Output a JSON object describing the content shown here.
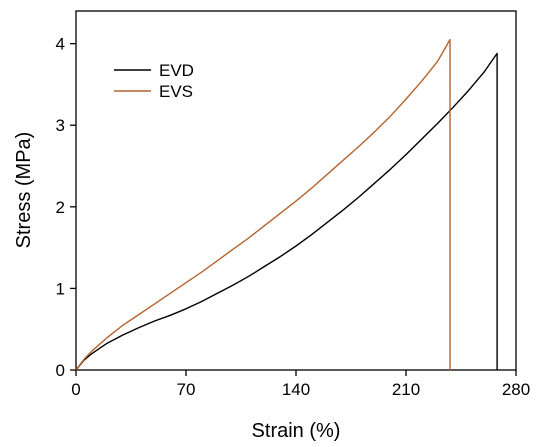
{
  "chart_data": {
    "type": "line",
    "title": "",
    "xlabel": "Strain (%)",
    "ylabel": "Stress (MPa)",
    "xlim": [
      0,
      280
    ],
    "ylim": [
      0,
      4.4
    ],
    "xticks": [
      0,
      70,
      140,
      210,
      280
    ],
    "yticks": [
      0,
      1,
      2,
      3,
      4
    ],
    "grid": false,
    "legend": "top-left",
    "series": [
      {
        "name": "EVD",
        "color": "#000000",
        "x": [
          0,
          5,
          10,
          20,
          30,
          40,
          50,
          60,
          70,
          80,
          90,
          100,
          110,
          120,
          130,
          140,
          150,
          160,
          170,
          180,
          190,
          200,
          210,
          220,
          230,
          240,
          250,
          260,
          268,
          268
        ],
        "y": [
          0,
          0.12,
          0.2,
          0.33,
          0.43,
          0.52,
          0.6,
          0.67,
          0.75,
          0.84,
          0.94,
          1.04,
          1.15,
          1.27,
          1.39,
          1.52,
          1.66,
          1.81,
          1.96,
          2.12,
          2.29,
          2.46,
          2.64,
          2.83,
          3.02,
          3.22,
          3.43,
          3.66,
          3.88,
          0
        ]
      },
      {
        "name": "EVS",
        "color": "#b5642e",
        "x": [
          0,
          5,
          10,
          20,
          30,
          40,
          50,
          60,
          70,
          80,
          90,
          100,
          110,
          120,
          130,
          140,
          150,
          160,
          170,
          180,
          190,
          200,
          210,
          220,
          230,
          238,
          238
        ],
        "y": [
          0,
          0.13,
          0.23,
          0.4,
          0.55,
          0.68,
          0.81,
          0.94,
          1.07,
          1.2,
          1.34,
          1.48,
          1.62,
          1.77,
          1.92,
          2.07,
          2.23,
          2.4,
          2.57,
          2.74,
          2.92,
          3.11,
          3.32,
          3.54,
          3.78,
          4.05,
          0
        ]
      }
    ]
  }
}
